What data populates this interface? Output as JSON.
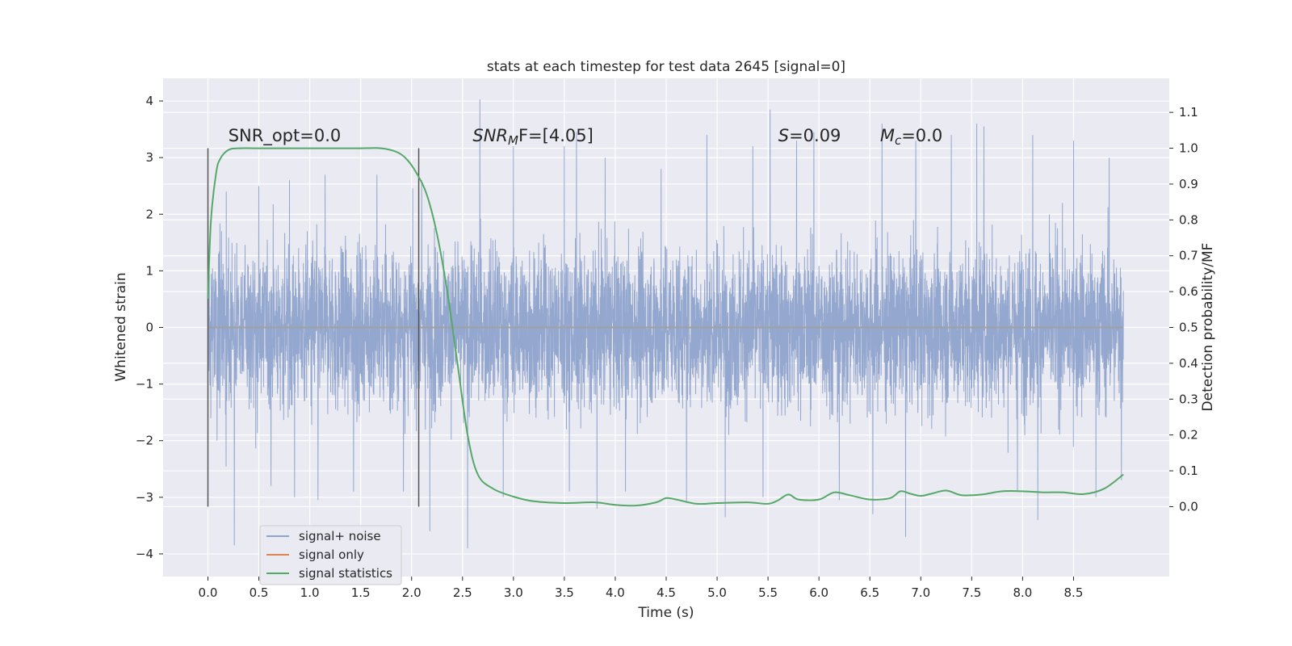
{
  "chart_data": {
    "type": "line",
    "title": "stats at each timestep for test data 2645 [signal=0]",
    "xlabel": "Time (s)",
    "ylabel": "Whitened strain",
    "y2label": "Detection probability/MF",
    "xlim": [
      -0.44,
      9.44
    ],
    "ylim": [
      -4.4,
      4.4
    ],
    "y2lim": [
      -0.195,
      1.195
    ],
    "x_ticks": [
      0.0,
      0.5,
      1.0,
      1.5,
      2.0,
      2.5,
      3.0,
      3.5,
      4.0,
      4.5,
      5.0,
      5.5,
      6.0,
      6.5,
      7.0,
      7.5,
      8.0,
      8.5
    ],
    "x_tick_labels": [
      "0.0",
      "0.5",
      "1.0",
      "1.5",
      "2.0",
      "2.5",
      "3.0",
      "3.5",
      "4.0",
      "4.5",
      "5.0",
      "5.5",
      "6.0",
      "6.5",
      "7.0",
      "7.5",
      "8.0",
      "8.5"
    ],
    "y_ticks": [
      4,
      3,
      2,
      1,
      0,
      -1,
      -2,
      -3,
      -4
    ],
    "y_tick_labels": [
      "4",
      "3",
      "2",
      "1",
      "0",
      "−1",
      "−2",
      "−3",
      "−4"
    ],
    "y2_ticks": [
      1.1,
      1.0,
      0.9,
      0.8,
      0.7,
      0.6,
      0.5,
      0.4,
      0.3,
      0.2,
      0.1,
      0.0
    ],
    "y2_tick_labels": [
      "1.1",
      "1.0",
      "0.9",
      "0.8",
      "0.7",
      "0.6",
      "0.5",
      "0.4",
      "0.3",
      "0.2",
      "0.1",
      "0.0"
    ],
    "grid": true,
    "legend_position": "lower-left",
    "series": [
      {
        "name": "signal+ noise",
        "axis": "left",
        "color": "#8fa3cc",
        "x_range": [
          0.0,
          8.99
        ],
        "envelope_core": [
          -1.2,
          1.3
        ],
        "peaks": [
          [
            0.0,
            2.2
          ],
          [
            0.09,
            -2.0
          ],
          [
            0.18,
            2.4
          ],
          [
            0.26,
            -3.85
          ],
          [
            0.5,
            2.5
          ],
          [
            0.62,
            -2.8
          ],
          [
            0.8,
            2.6
          ],
          [
            0.85,
            -3.0
          ],
          [
            1.08,
            -3.05
          ],
          [
            1.15,
            2.7
          ],
          [
            1.43,
            -2.9
          ],
          [
            1.66,
            2.7
          ],
          [
            1.92,
            -2.9
          ],
          [
            2.1,
            2.6
          ],
          [
            2.18,
            -3.6
          ],
          [
            2.55,
            -3.9
          ],
          [
            2.67,
            4.03
          ],
          [
            2.9,
            -3.0
          ],
          [
            3.0,
            3.2
          ],
          [
            3.55,
            -2.9
          ],
          [
            3.5,
            3.2
          ],
          [
            3.62,
            3.45
          ],
          [
            3.82,
            -3.2
          ],
          [
            3.9,
            3.0
          ],
          [
            4.1,
            -2.9
          ],
          [
            4.45,
            2.8
          ],
          [
            4.7,
            -3.1
          ],
          [
            4.9,
            3.4
          ],
          [
            5.08,
            -3.35
          ],
          [
            5.35,
            3.2
          ],
          [
            5.45,
            -3.0
          ],
          [
            5.52,
            3.85
          ],
          [
            5.78,
            3.3
          ],
          [
            5.95,
            3.45
          ],
          [
            6.2,
            -3.05
          ],
          [
            6.53,
            -3.3
          ],
          [
            6.62,
            3.6
          ],
          [
            6.85,
            -3.7
          ],
          [
            6.95,
            3.3
          ],
          [
            7.3,
            3.4
          ],
          [
            7.55,
            3.6
          ],
          [
            7.62,
            3.55
          ],
          [
            7.95,
            -2.9
          ],
          [
            8.1,
            3.4
          ],
          [
            8.15,
            -3.4
          ],
          [
            8.5,
            3.3
          ],
          [
            8.72,
            -3.0
          ],
          [
            8.85,
            3.0
          ],
          [
            8.97,
            -2.7
          ]
        ]
      },
      {
        "name": "signal only",
        "axis": "left",
        "color": "#dd8452",
        "x": [
          0.0,
          8.99
        ],
        "y": [
          0.0,
          0.0
        ]
      },
      {
        "name": "signal statistics",
        "axis": "right",
        "color": "#55a868",
        "x": [
          0.0,
          0.03,
          0.08,
          0.12,
          0.2,
          0.3,
          0.5,
          1.0,
          1.5,
          1.7,
          1.85,
          1.95,
          2.05,
          2.15,
          2.25,
          2.35,
          2.45,
          2.55,
          2.65,
          2.8,
          3.0,
          3.2,
          3.5,
          3.8,
          4.0,
          4.2,
          4.4,
          4.5,
          4.6,
          4.8,
          5.0,
          5.3,
          5.5,
          5.6,
          5.7,
          5.8,
          6.0,
          6.15,
          6.3,
          6.5,
          6.7,
          6.8,
          6.9,
          7.0,
          7.1,
          7.25,
          7.4,
          7.6,
          7.8,
          8.0,
          8.2,
          8.4,
          8.6,
          8.8,
          8.99
        ],
        "y": [
          0.58,
          0.8,
          0.93,
          0.97,
          0.995,
          1.0,
          1.0,
          1.0,
          1.0,
          1.0,
          0.99,
          0.97,
          0.93,
          0.87,
          0.76,
          0.6,
          0.4,
          0.2,
          0.09,
          0.05,
          0.028,
          0.015,
          0.01,
          0.012,
          0.005,
          0.003,
          0.012,
          0.024,
          0.02,
          0.008,
          0.01,
          0.012,
          0.008,
          0.018,
          0.034,
          0.02,
          0.02,
          0.04,
          0.032,
          0.02,
          0.024,
          0.043,
          0.036,
          0.03,
          0.036,
          0.045,
          0.032,
          0.034,
          0.043,
          0.043,
          0.04,
          0.04,
          0.035,
          0.05,
          0.09
        ]
      }
    ],
    "vertical_lines": [
      {
        "x": 0.0,
        "color": "#555555"
      },
      {
        "x": 2.07,
        "color": "#555555"
      }
    ],
    "annotations": [
      {
        "id": "snr-opt",
        "text": "SNR_opt=0.0",
        "x": 0.2,
        "y2": 1.015
      },
      {
        "id": "snr-mf",
        "text_main": "SNR",
        "text_sub": "M",
        "text_rest": "F=[4.05]",
        "x": 2.6,
        "y2": 1.015
      },
      {
        "id": "s-stat",
        "text_main": "S",
        "text_rest": "=0.09",
        "x": 5.6,
        "y2": 1.015
      },
      {
        "id": "mc",
        "text_main": "M",
        "text_sub": "c",
        "text_rest": "=0.0",
        "x": 6.6,
        "y2": 1.015
      }
    ]
  },
  "colors": {
    "plot_background": "#eaeaf2",
    "grid": "#ffffff",
    "text": "#262626"
  }
}
